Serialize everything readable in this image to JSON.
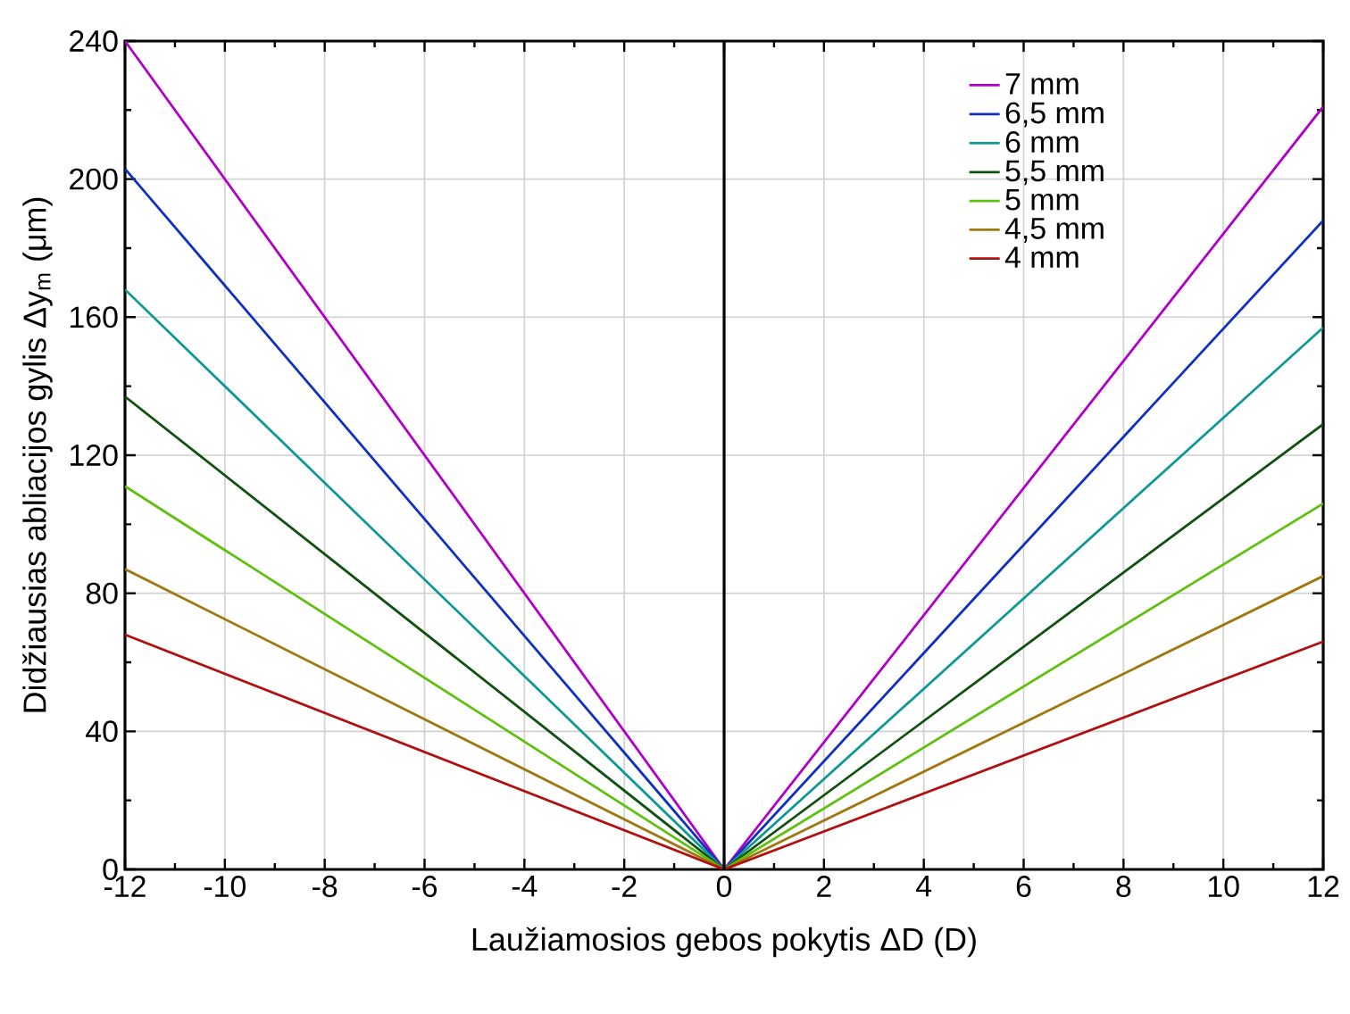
{
  "chart_data": {
    "type": "line",
    "xlabel": "Laužiamosios gebos pokytis ΔD (D)",
    "ylabel": "Didžiausias abliacijos gylis Δy$_{m}$ (μm)",
    "x": [
      -12,
      0,
      12
    ],
    "series": [
      {
        "name": "7 mm",
        "color": "#b000c8",
        "values": [
          240,
          0,
          221
        ]
      },
      {
        "name": "6,5 mm",
        "color": "#1030c0",
        "values": [
          203,
          0,
          188
        ]
      },
      {
        "name": "6 mm",
        "color": "#109898",
        "values": [
          168,
          0,
          157
        ]
      },
      {
        "name": "5,5 mm",
        "color": "#105010",
        "values": [
          137,
          0,
          129
        ]
      },
      {
        "name": "5 mm",
        "color": "#60c010",
        "values": [
          111,
          0,
          106
        ]
      },
      {
        "name": "4,5 mm",
        "color": "#a07810",
        "values": [
          87,
          0,
          85
        ]
      },
      {
        "name": "4 mm",
        "color": "#b01010",
        "values": [
          68,
          0,
          66
        ]
      }
    ],
    "xlim": [
      -12,
      12
    ],
    "ylim": [
      0,
      240
    ],
    "xticks": [
      -12,
      -10,
      -8,
      -6,
      -4,
      -2,
      0,
      2,
      4,
      6,
      8,
      10,
      12
    ],
    "yticks": [
      0,
      40,
      80,
      120,
      160,
      200,
      240
    ],
    "ref_lines": [
      {
        "axis": "x",
        "value": 0,
        "color": "#000000"
      }
    ],
    "grid": true,
    "legend": "top right",
    "marker": "none",
    "line_style": "solid"
  }
}
